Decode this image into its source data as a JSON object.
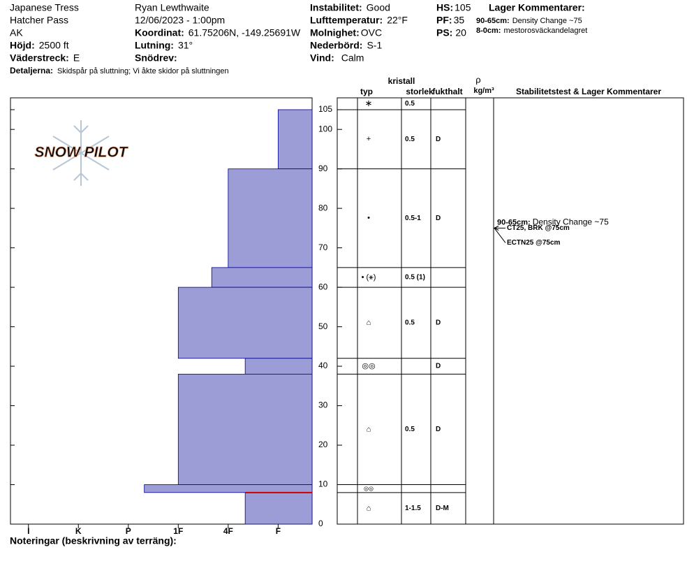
{
  "header": {
    "location": "Japanese Tress",
    "range": "Hatcher Pass",
    "state": "AK",
    "elevation": {
      "label": "Höjd:",
      "value": "2500 ft"
    },
    "aspect": {
      "label": "Väderstreck:",
      "value": "E"
    },
    "observer": "Ryan Lewthwaite",
    "datetime": "12/06/2023 - 1:00pm",
    "coordinates": {
      "label": "Koordinat:",
      "value": "61.75206N, -149.25691W"
    },
    "slope": {
      "label": "Lutning:",
      "value": "31°"
    },
    "wind_loading": {
      "label": "Snödrev:"
    },
    "instability": {
      "label": "Instabilitet:",
      "value": "Good"
    },
    "air_temperature": {
      "label": "Lufttemperatur:",
      "value": "22°F"
    },
    "sky": {
      "label": "Molnighet:",
      "value": "OVC"
    },
    "precipitation": {
      "label": "Nederbörd:",
      "value": "S-1"
    },
    "wind": {
      "label": "Vind:",
      "value": "Calm"
    },
    "hs": {
      "label": "HS:",
      "value": "105"
    },
    "pf": {
      "label": "PF:",
      "value": "35"
    },
    "ps": {
      "label": "PS:",
      "value": "20"
    },
    "layer_comments": {
      "title": "Lager Kommentarer:",
      "items": [
        {
          "depth": "90-65cm:",
          "text": "Density Change ~75"
        },
        {
          "depth": "8-0cm:",
          "text": "mestorosväckandelagret"
        }
      ]
    },
    "details": {
      "label": "Detaljerna:",
      "value": "Skidspår på sluttning;  Vi åkte skidor på sluttningen"
    }
  },
  "chart_data": {
    "type": "snow-profile",
    "logo": "SNOW PILOT",
    "ylim": [
      0,
      108
    ],
    "yticks": [
      0,
      10,
      20,
      30,
      40,
      50,
      60,
      70,
      80,
      90,
      100,
      105
    ],
    "xlim": [
      6.36,
      0.32
    ],
    "xticks": [
      {
        "value": 6,
        "label": "I"
      },
      {
        "value": 5,
        "label": "K"
      },
      {
        "value": 4,
        "label": "P"
      },
      {
        "value": 3,
        "label": "1F"
      },
      {
        "value": 2,
        "label": "4F"
      },
      {
        "value": 1,
        "label": "F"
      }
    ],
    "bar_color": "#9c9cd6",
    "concern_depth": 8,
    "concern_color": "#cc0000",
    "surface": {
      "grain": "∗",
      "size": "0.5"
    },
    "layers": [
      {
        "top": 105,
        "bottom": 90,
        "hardness": 1,
        "grain": "+",
        "size": "0.5",
        "moisture": "D"
      },
      {
        "top": 90,
        "bottom": 65,
        "hardness": 2,
        "grain": "•",
        "size": "0.5-1",
        "moisture": "D"
      },
      {
        "top": 65,
        "bottom": 60,
        "hardness": 2.33,
        "grain": "• (⚹)",
        "size": "0.5 (1)"
      },
      {
        "top": 60,
        "bottom": 42,
        "hardness": 3,
        "grain": "⌂",
        "size": "0.5",
        "moisture": "D"
      },
      {
        "top": 42,
        "bottom": 38,
        "hardness": 1.66,
        "grain": "◎◎",
        "moisture": "D"
      },
      {
        "top": 38,
        "bottom": 10,
        "hardness": 3,
        "grain": "⌂",
        "size": "0.5",
        "moisture": "D"
      },
      {
        "top": 10,
        "bottom": 8,
        "hardness": 3.68,
        "grain": "◎◎"
      },
      {
        "top": 8,
        "bottom": 0,
        "hardness": 1.66,
        "grain": "⌂",
        "size": "1-1.5",
        "moisture": "D-M"
      }
    ],
    "columns": {
      "type": "typ",
      "size": [
        "kristall",
        "storlek"
      ],
      "moisture": "fukthalt",
      "density": [
        "ρ",
        "kg/m³"
      ],
      "comments": "Stabilitetstest & Lager Kommentarer"
    },
    "annotation": {
      "depth": 75,
      "comment_depth": "90-65cm:",
      "comment_text": "Density Change ~75",
      "tests": [
        "CT25, BRK @75cm",
        "ECTN25 @75cm"
      ]
    },
    "notes_label": "Noteringar (beskrivning av terräng):"
  }
}
